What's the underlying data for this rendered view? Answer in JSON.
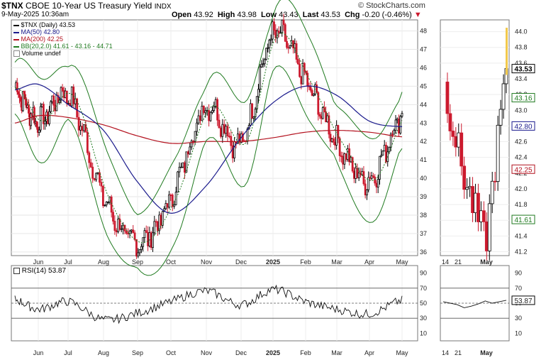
{
  "header": {
    "ticker": "$TNX",
    "description": "CBOE 10-Year US Treasury Yield",
    "exchange": "INDX",
    "brand": "© StockCharts.com",
    "date": "9-May-2025 10:36am",
    "open_label": "Open",
    "open": "43.92",
    "high_label": "High",
    "high": "43.98",
    "low_label": "Low",
    "low": "43.43",
    "last_label": "Last",
    "last": "43.53",
    "chg_label": "Chg",
    "chg": "-0.20 (-0.46%)"
  },
  "legend": [
    {
      "text": "$TNX (Daily) 43.53",
      "color": "#000000"
    },
    {
      "text": "MA(50) 42.80",
      "color": "#1a1a8c"
    },
    {
      "text": "MA(200) 42.25",
      "color": "#b3111e"
    },
    {
      "text": "BB(20,2.0) 41.61 - 43.16 - 44.71",
      "color": "#1f7a1f"
    },
    {
      "text": "Volume undef",
      "color": "#000000"
    }
  ],
  "rsi_panel": {
    "label": "RSI(14) 53.87",
    "value_tag": "53.87"
  },
  "colors": {
    "up": "#000000",
    "down": "#cc1a2e",
    "ma50": "#1a1a8c",
    "ma200": "#b3111e",
    "bb": "#1f7a1f",
    "last_tag": "#f2c94c"
  },
  "chart_data": [
    {
      "type": "line",
      "title": "$TNX CBOE 10-Year US Treasury Yield INDX (Daily)",
      "x_tick_labels": [
        "Jun",
        "Jul",
        "Aug",
        "Sep",
        "Oct",
        "Nov",
        "Dec",
        "2025",
        "Feb",
        "Mar",
        "Apr",
        "May"
      ],
      "y_tick_labels": [
        "36",
        "37",
        "38",
        "39",
        "40",
        "41",
        "42",
        "43",
        "44",
        "45",
        "46",
        "47",
        "48"
      ],
      "ylim": [
        35.8,
        48.6
      ],
      "grid": true,
      "series": [
        {
          "name": "$TNX (Daily)",
          "x": [
            "May",
            "Jun",
            "Jul",
            "Aug",
            "Sep",
            "Oct",
            "Nov",
            "Dec",
            "2025",
            "Feb",
            "Mar",
            "Apr",
            "May"
          ],
          "values": [
            44.9,
            43.1,
            44.5,
            39.0,
            36.5,
            38.9,
            43.9,
            41.9,
            47.8,
            45.3,
            42.0,
            39.9,
            43.53
          ]
        },
        {
          "name": "MA(50)",
          "x": [
            "May",
            "Jun",
            "Jul",
            "Aug",
            "Sep",
            "Oct",
            "Nov",
            "Dec",
            "2025",
            "Feb",
            "Mar",
            "Apr",
            "May"
          ],
          "values": [
            44.8,
            45.1,
            44.0,
            42.6,
            39.8,
            38.1,
            39.6,
            42.2,
            44.1,
            45.0,
            44.5,
            43.1,
            42.8
          ]
        },
        {
          "name": "MA(200)",
          "x": [
            "May",
            "Jun",
            "Jul",
            "Aug",
            "Sep",
            "Oct",
            "Nov",
            "Dec",
            "2025",
            "Feb",
            "Mar",
            "Apr",
            "May"
          ],
          "values": [
            43.0,
            43.4,
            43.3,
            42.9,
            42.3,
            41.9,
            42.0,
            42.0,
            42.2,
            42.5,
            42.6,
            42.5,
            42.25
          ]
        }
      ],
      "last_value": 43.53
    },
    {
      "type": "line",
      "title": "$TNX Daily zoom",
      "x_tick_labels": [
        "14",
        "21",
        "May"
      ],
      "y_tick_labels": [
        "41.2",
        "41.4",
        "41.6",
        "41.8",
        "42.0",
        "42.2",
        "42.4",
        "42.6",
        "42.8",
        "43.0",
        "43.2",
        "43.4",
        "43.6",
        "43.8",
        "44.0"
      ],
      "ylim": [
        41.15,
        44.15
      ],
      "series": [
        {
          "name": "$TNX (Daily)",
          "x": [
            "14",
            "21",
            "May",
            "8"
          ],
          "values": [
            43.3,
            42.1,
            41.3,
            43.53
          ]
        }
      ],
      "value_tags": [
        "43.53",
        "43.16",
        "42.80",
        "42.25",
        "41.61"
      ]
    },
    {
      "type": "line",
      "title": "RSI(14)",
      "x_tick_labels": [
        "Jun",
        "Jul",
        "Aug",
        "Sep",
        "Oct",
        "Nov",
        "Dec",
        "2025",
        "Feb",
        "Mar",
        "Apr",
        "May"
      ],
      "y_tick_labels": [
        "10",
        "30",
        "50",
        "70",
        "90"
      ],
      "ylim": [
        0,
        100
      ],
      "series": [
        {
          "name": "RSI(14)",
          "x": [
            "May",
            "Jun",
            "Jul",
            "Aug",
            "Sep",
            "Oct",
            "Nov",
            "Dec",
            "2025",
            "Feb",
            "Mar",
            "Apr",
            "May"
          ],
          "values": [
            55,
            42,
            52,
            28,
            37,
            52,
            66,
            48,
            68,
            52,
            42,
            36,
            53.87
          ]
        }
      ],
      "zoom_x_tick_labels": [
        "14",
        "21",
        "May"
      ],
      "reference_lines": [
        30,
        50,
        70
      ]
    }
  ]
}
